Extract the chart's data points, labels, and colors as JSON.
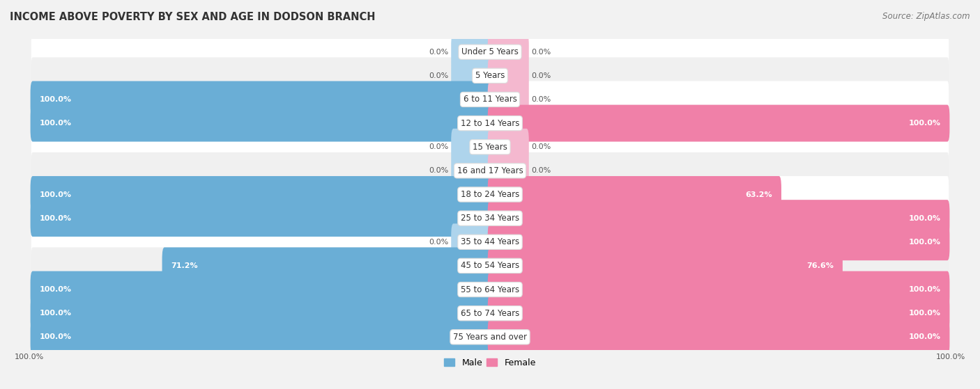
{
  "title": "INCOME ABOVE POVERTY BY SEX AND AGE IN DODSON BRANCH",
  "source": "Source: ZipAtlas.com",
  "categories": [
    "Under 5 Years",
    "5 Years",
    "6 to 11 Years",
    "12 to 14 Years",
    "15 Years",
    "16 and 17 Years",
    "18 to 24 Years",
    "25 to 34 Years",
    "35 to 44 Years",
    "45 to 54 Years",
    "55 to 64 Years",
    "65 to 74 Years",
    "75 Years and over"
  ],
  "male_values": [
    0.0,
    0.0,
    100.0,
    100.0,
    0.0,
    0.0,
    100.0,
    100.0,
    0.0,
    71.2,
    100.0,
    100.0,
    100.0
  ],
  "female_values": [
    0.0,
    0.0,
    0.0,
    100.0,
    0.0,
    0.0,
    63.2,
    100.0,
    100.0,
    76.6,
    100.0,
    100.0,
    100.0
  ],
  "male_color": "#6aaed6",
  "male_color_light": "#aed4ec",
  "female_color": "#f080a8",
  "female_color_light": "#f4b8cf",
  "row_bg_odd": "#f0f0f0",
  "row_bg_even": "#ffffff",
  "title_fontsize": 10.5,
  "source_fontsize": 8.5,
  "label_fontsize": 8.0,
  "category_fontsize": 8.5,
  "legend_male": "Male",
  "legend_female": "Female"
}
